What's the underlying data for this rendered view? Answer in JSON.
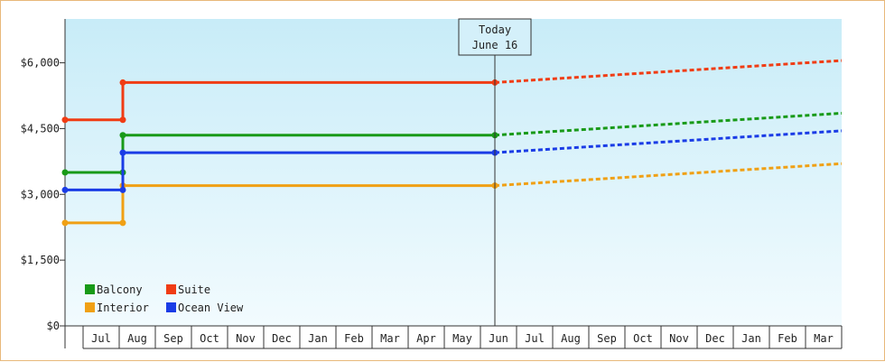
{
  "chart_data": {
    "type": "line",
    "title": "",
    "xlabel": "",
    "ylabel": "",
    "ylim": [
      0,
      7000
    ],
    "y_ticks": [
      0,
      1500,
      3000,
      4500,
      6000
    ],
    "y_tick_labels": [
      "$0",
      "$1,500",
      "$3,000",
      "$4,500",
      "$6,000"
    ],
    "x_tick_labels": [
      "Jul",
      "Aug",
      "Sep",
      "Oct",
      "Nov",
      "Dec",
      "Jan",
      "Feb",
      "Mar",
      "Apr",
      "May",
      "Jun",
      "Jul",
      "Aug",
      "Sep",
      "Oct",
      "Nov",
      "Dec",
      "Jan",
      "Feb",
      "Mar"
    ],
    "x_range_months": [
      0,
      21.5
    ],
    "today": {
      "line1": "Today",
      "line2": "June 16",
      "month_index": 11.9
    },
    "grid": false,
    "legend": "bottom-left",
    "series": [
      {
        "name": "Balcony",
        "color": "#189a18",
        "history": [
          [
            0,
            3500
          ],
          [
            1.6,
            3500
          ],
          [
            1.6,
            4350
          ],
          [
            11.9,
            4350
          ]
        ],
        "forecast": [
          [
            11.9,
            4350
          ],
          [
            21.5,
            4850
          ]
        ]
      },
      {
        "name": "Suite",
        "color": "#f03c14",
        "history": [
          [
            0,
            4700
          ],
          [
            1.6,
            4700
          ],
          [
            1.6,
            5550
          ],
          [
            11.9,
            5550
          ]
        ],
        "forecast": [
          [
            11.9,
            5550
          ],
          [
            21.5,
            6050
          ]
        ]
      },
      {
        "name": "Interior",
        "color": "#f0a014",
        "history": [
          [
            0,
            2350
          ],
          [
            1.6,
            2350
          ],
          [
            1.6,
            3200
          ],
          [
            11.9,
            3200
          ]
        ],
        "forecast": [
          [
            11.9,
            3200
          ],
          [
            21.5,
            3700
          ]
        ]
      },
      {
        "name": "Ocean View",
        "color": "#1a3ce6",
        "history": [
          [
            0,
            3100
          ],
          [
            1.6,
            3100
          ],
          [
            1.6,
            3950
          ],
          [
            11.9,
            3950
          ]
        ],
        "forecast": [
          [
            11.9,
            3950
          ],
          [
            21.5,
            4450
          ]
        ]
      }
    ]
  }
}
